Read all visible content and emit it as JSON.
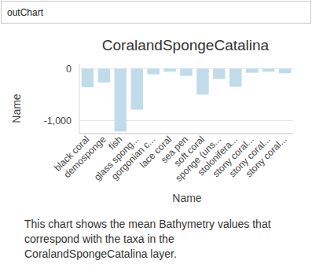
{
  "cell_input": "outChart",
  "chart_data": {
    "type": "bar",
    "title": "CoralandSpongeCatalina",
    "x_label": "Name",
    "y_label": "Name",
    "categories": [
      "black coral",
      "demosponge",
      "fish",
      "glass spong...",
      "gorgonian c...",
      "lace coral",
      "sea pen",
      "soft coral",
      "sponge (uns...",
      "stolonifera...",
      "stony coral...",
      "stony coral...",
      "stony coral..."
    ],
    "values": [
      -360,
      -270,
      -1210,
      -790,
      -110,
      -60,
      -140,
      -500,
      -200,
      -350,
      -80,
      -60,
      -90
    ],
    "color": "#c0dcea",
    "ylim": [
      -1250,
      80
    ],
    "yticks": [
      0,
      {
        "value": -1000,
        "label": "-1,000"
      }
    ],
    "grid": true
  },
  "caption": [
    "This chart shows the mean Bathymetry values that",
    "correspond with the taxa in the",
    "CoralandSpongeCatalina layer."
  ]
}
